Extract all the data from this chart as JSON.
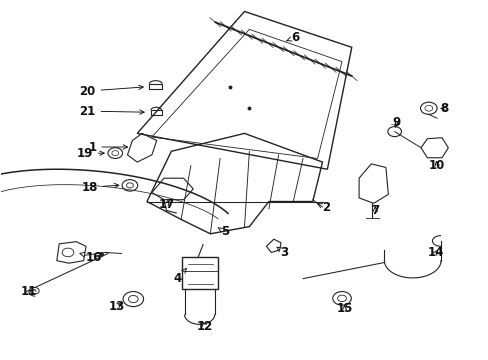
{
  "background_color": "#ffffff",
  "fig_width": 4.89,
  "fig_height": 3.6,
  "dpi": 100,
  "line_color": "#222222",
  "text_color": "#111111",
  "label_fontsize": 8.5
}
